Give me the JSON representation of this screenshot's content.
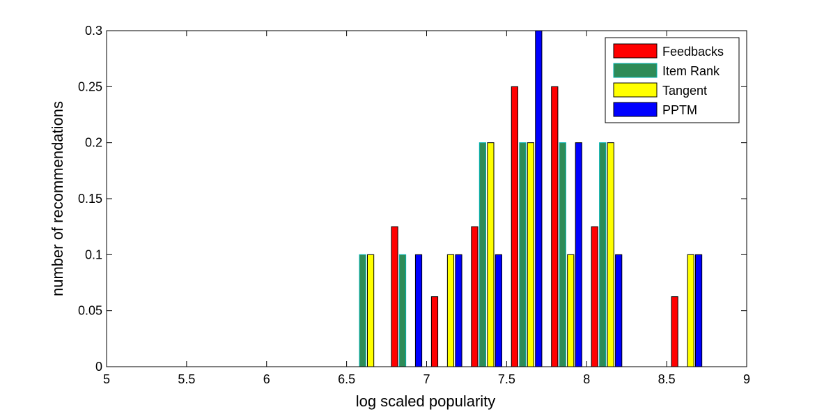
{
  "chart_data": {
    "type": "bar",
    "title": "",
    "xlabel": "log scaled popularity",
    "ylabel": "number of recommendations",
    "xlim": [
      5,
      9
    ],
    "ylim": [
      0,
      0.3
    ],
    "x_ticks": [
      "5",
      "5.5",
      "6",
      "6.5",
      "7",
      "7.5",
      "8",
      "8.5",
      "9"
    ],
    "y_ticks": [
      "0",
      "0.05",
      "0.1",
      "0.15",
      "0.2",
      "0.25",
      "0.3"
    ],
    "grid": false,
    "legend_position": "top-right",
    "categories": [
      5.125,
      5.375,
      5.625,
      5.875,
      6.125,
      6.375,
      6.625,
      6.875,
      7.125,
      7.375,
      7.625,
      7.875,
      8.125,
      8.375,
      8.625,
      8.875
    ],
    "series": [
      {
        "name": "Feedbacks",
        "color": "#ff0000",
        "values": [
          0,
          0,
          0,
          0,
          0,
          0,
          0,
          0.125,
          0.0625,
          0.125,
          0.25,
          0.25,
          0.125,
          0,
          0.0625,
          0
        ]
      },
      {
        "name": "Item Rank",
        "color": "#2e8b57",
        "edge": "#00b3b3",
        "values": [
          0,
          0,
          0,
          0,
          0,
          0,
          0.1,
          0.1,
          0,
          0.2,
          0.2,
          0.2,
          0.2,
          0,
          0,
          0
        ]
      },
      {
        "name": "Tangent",
        "color": "#ffff00",
        "values": [
          0,
          0,
          0,
          0,
          0,
          0,
          0.1,
          0,
          0.1,
          0.2,
          0.2,
          0.1,
          0.2,
          0,
          0.1,
          0
        ]
      },
      {
        "name": "PPTM",
        "color": "#0000ff",
        "values": [
          0,
          0,
          0,
          0,
          0,
          0,
          0,
          0.1,
          0.1,
          0.1,
          0.3,
          0.2,
          0.1,
          0,
          0.1,
          0
        ]
      }
    ]
  }
}
